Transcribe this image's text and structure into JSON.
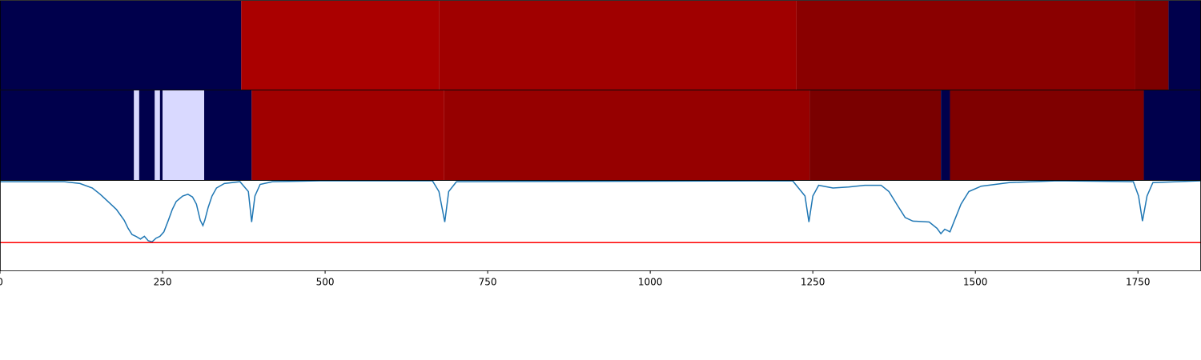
{
  "chart_data": {
    "type": "line",
    "xlim": [
      0,
      1847
    ],
    "xticks": [
      0,
      250,
      500,
      750,
      1000,
      1250,
      1500,
      1750
    ],
    "strips": [
      {
        "segments": [
          {
            "start": 0,
            "end": 371,
            "color": "#00004c"
          },
          {
            "start": 371,
            "end": 675,
            "color": "#aa0000"
          },
          {
            "start": 675,
            "end": 1225,
            "color": "#a00000"
          },
          {
            "start": 1225,
            "end": 1746,
            "color": "#8a0000"
          },
          {
            "start": 1746,
            "end": 1797,
            "color": "#7d0000"
          },
          {
            "start": 1797,
            "end": 1847,
            "color": "#00004c"
          }
        ]
      },
      {
        "segments": [
          {
            "start": 0,
            "end": 206,
            "color": "#00004c"
          },
          {
            "start": 206,
            "end": 214,
            "color": "#d9d9ff"
          },
          {
            "start": 214,
            "end": 238,
            "color": "#00004c"
          },
          {
            "start": 238,
            "end": 246,
            "color": "#d9d9ff"
          },
          {
            "start": 246,
            "end": 250,
            "color": "#00004c"
          },
          {
            "start": 250,
            "end": 314,
            "color": "#d9d9ff"
          },
          {
            "start": 314,
            "end": 387,
            "color": "#00004c"
          },
          {
            "start": 387,
            "end": 683,
            "color": "#a00000"
          },
          {
            "start": 683,
            "end": 1245,
            "color": "#960000"
          },
          {
            "start": 1245,
            "end": 1447,
            "color": "#7a0000"
          },
          {
            "start": 1447,
            "end": 1461,
            "color": "#00004c"
          },
          {
            "start": 1461,
            "end": 1759,
            "color": "#7f0000"
          },
          {
            "start": 1759,
            "end": 1847,
            "color": "#00004c"
          }
        ]
      }
    ],
    "x": [
      0,
      99,
      123,
      142,
      154,
      166,
      179,
      191,
      197,
      203,
      209,
      216,
      222,
      228,
      234,
      240,
      246,
      252,
      259,
      265,
      271,
      281,
      289,
      296,
      302,
      308,
      312,
      315,
      320,
      326,
      333,
      345,
      369,
      382,
      387,
      392,
      400,
      419,
      493,
      665,
      675,
      684,
      690,
      702,
      1219,
      1238,
      1244,
      1250,
      1259,
      1281,
      1305,
      1330,
      1355,
      1367,
      1379,
      1392,
      1404,
      1429,
      1441,
      1447,
      1453,
      1461,
      1468,
      1478,
      1490,
      1509,
      1552,
      1626,
      1743,
      1751,
      1757,
      1764,
      1773,
      1847
    ],
    "values": [
      0.99,
      0.99,
      0.97,
      0.92,
      0.85,
      0.77,
      0.68,
      0.56,
      0.47,
      0.4,
      0.38,
      0.35,
      0.38,
      0.33,
      0.32,
      0.36,
      0.38,
      0.43,
      0.56,
      0.68,
      0.77,
      0.83,
      0.85,
      0.82,
      0.74,
      0.56,
      0.5,
      0.56,
      0.7,
      0.83,
      0.92,
      0.97,
      0.99,
      0.88,
      0.54,
      0.83,
      0.96,
      0.99,
      1.0,
      1.0,
      0.88,
      0.54,
      0.88,
      0.99,
      1.0,
      0.83,
      0.54,
      0.83,
      0.95,
      0.92,
      0.93,
      0.95,
      0.95,
      0.88,
      0.74,
      0.59,
      0.55,
      0.54,
      0.47,
      0.41,
      0.46,
      0.43,
      0.56,
      0.74,
      0.88,
      0.94,
      0.98,
      1.0,
      0.99,
      0.83,
      0.55,
      0.83,
      0.98,
      1.0
    ],
    "color": "#1f77b4",
    "ylim": [
      0,
      1
    ],
    "threshold": 0.31,
    "threshold_color": "#ff0000"
  }
}
